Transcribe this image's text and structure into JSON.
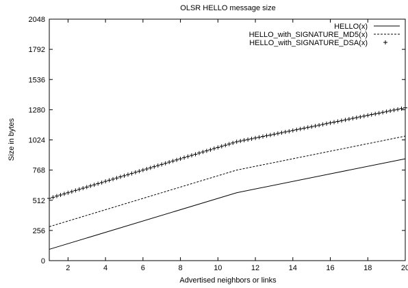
{
  "chart_data": {
    "type": "line",
    "title": "OLSR HELLO message size",
    "xlabel": "Advertised neighbors or links",
    "ylabel": "Size in bytes",
    "xlim": [
      1,
      20
    ],
    "ylim": [
      0,
      2048
    ],
    "x_ticks": [
      2,
      4,
      6,
      8,
      10,
      12,
      14,
      16,
      18,
      20
    ],
    "y_ticks": [
      0,
      256,
      512,
      768,
      1024,
      1280,
      1536,
      1792,
      2048
    ],
    "grid": false,
    "legend_position": "top-right",
    "series": [
      {
        "name": "HELLO(x)",
        "style": "solid",
        "points": [
          [
            1,
            96
          ],
          [
            11,
            576
          ],
          [
            20,
            864
          ]
        ]
      },
      {
        "name": "HELLO_with_SIGNATURE_MD5(x)",
        "style": "dashed",
        "points": [
          [
            1,
            288
          ],
          [
            11,
            768
          ],
          [
            20,
            1056
          ]
        ]
      },
      {
        "name": "HELLO_with_SIGNATURE_DSA(x)",
        "style": "plus-markers",
        "marker_step": 0.2,
        "points": [
          [
            1,
            528
          ],
          [
            11,
            1008
          ],
          [
            20,
            1296
          ]
        ]
      }
    ]
  }
}
